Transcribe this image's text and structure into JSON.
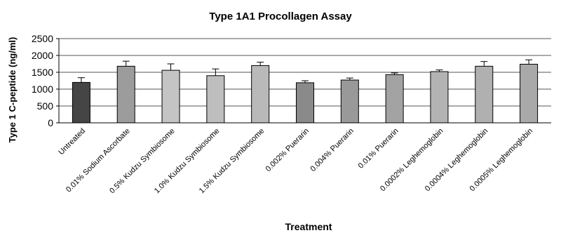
{
  "chart_data": {
    "type": "bar",
    "title": "Type 1A1 Procollagen Assay",
    "xlabel": "Treatment",
    "ylabel": "Type 1 C-peptide (ng/ml)",
    "ylim": [
      0,
      2500
    ],
    "yticks": [
      0,
      500,
      1000,
      1500,
      2000,
      2500
    ],
    "grid": true,
    "legend": "none",
    "categories": [
      "Untreated",
      "0.01% Sodium Ascorbate",
      "0.5% Kudzu Symbiosome",
      "1.0% Kudzu Symbiosome",
      "1.5% Kudzu Symbiosome",
      "0.002% Puerarin",
      "0.004% Puerarin",
      "0.01% Puerarin",
      "0.0002% Leghemoglobin",
      "0.0004% Leghemoglobin",
      "0.0005% Leghemoglobin"
    ],
    "values": [
      1200,
      1680,
      1560,
      1400,
      1700,
      1190,
      1270,
      1430,
      1520,
      1680,
      1740
    ],
    "errors": [
      140,
      150,
      190,
      200,
      100,
      60,
      60,
      50,
      50,
      140,
      130
    ],
    "bar_colors": [
      "#454545",
      "#9c9c9c",
      "#c4c4c4",
      "#bebebe",
      "#b9b9b9",
      "#8a8a8a",
      "#999999",
      "#a3a3a3",
      "#b3b3b3",
      "#b0b0b0",
      "#a9a9a9"
    ]
  }
}
